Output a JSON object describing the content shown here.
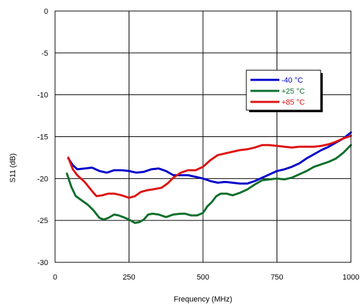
{
  "chart_data": {
    "type": "line",
    "xlabel": "Frequency (MHz)",
    "ylabel": "S11 (dB)",
    "xlim": [
      0,
      1000
    ],
    "ylim": [
      -30,
      0
    ],
    "x_ticks": [
      0,
      250,
      500,
      750,
      1000
    ],
    "y_ticks": [
      0,
      -5,
      -10,
      -15,
      -20,
      -25,
      -30
    ],
    "x_tick_labels": [
      "0",
      "250",
      "500",
      "750",
      "1000"
    ],
    "y_tick_labels": [
      "0",
      "-5",
      "-10",
      "-15",
      "-20",
      "-25",
      "-30"
    ],
    "grid": true,
    "legend_position": "right",
    "series": [
      {
        "name": "-40 °C",
        "color": "#0000cc",
        "points": [
          [
            45,
            -17.6
          ],
          [
            60,
            -18.4
          ],
          [
            75,
            -18.9
          ],
          [
            100,
            -18.8
          ],
          [
            125,
            -18.7
          ],
          [
            150,
            -19.1
          ],
          [
            175,
            -19.3
          ],
          [
            200,
            -19.0
          ],
          [
            225,
            -19.0
          ],
          [
            250,
            -19.1
          ],
          [
            275,
            -19.3
          ],
          [
            300,
            -19.2
          ],
          [
            325,
            -18.9
          ],
          [
            350,
            -18.8
          ],
          [
            375,
            -19.1
          ],
          [
            400,
            -19.6
          ],
          [
            425,
            -19.6
          ],
          [
            450,
            -19.6
          ],
          [
            475,
            -19.8
          ],
          [
            500,
            -20.0
          ],
          [
            525,
            -20.3
          ],
          [
            550,
            -20.5
          ],
          [
            575,
            -20.4
          ],
          [
            600,
            -20.5
          ],
          [
            625,
            -20.6
          ],
          [
            650,
            -20.6
          ],
          [
            675,
            -20.3
          ],
          [
            700,
            -19.9
          ],
          [
            725,
            -19.5
          ],
          [
            750,
            -19.1
          ],
          [
            775,
            -18.9
          ],
          [
            800,
            -18.6
          ],
          [
            825,
            -18.2
          ],
          [
            850,
            -17.6
          ],
          [
            875,
            -17.1
          ],
          [
            900,
            -16.6
          ],
          [
            925,
            -16.2
          ],
          [
            950,
            -15.7
          ],
          [
            975,
            -15.2
          ],
          [
            1000,
            -14.5
          ]
        ]
      },
      {
        "name": "+25 °C",
        "color": "#0b6e2a",
        "points": [
          [
            40,
            -19.4
          ],
          [
            55,
            -21.0
          ],
          [
            70,
            -22.1
          ],
          [
            90,
            -22.6
          ],
          [
            110,
            -23.1
          ],
          [
            130,
            -23.8
          ],
          [
            150,
            -24.7
          ],
          [
            165,
            -24.9
          ],
          [
            180,
            -24.7
          ],
          [
            200,
            -24.3
          ],
          [
            215,
            -24.4
          ],
          [
            230,
            -24.6
          ],
          [
            250,
            -24.9
          ],
          [
            270,
            -25.3
          ],
          [
            285,
            -25.2
          ],
          [
            300,
            -24.9
          ],
          [
            315,
            -24.3
          ],
          [
            330,
            -24.2
          ],
          [
            350,
            -24.3
          ],
          [
            375,
            -24.6
          ],
          [
            400,
            -24.3
          ],
          [
            425,
            -24.2
          ],
          [
            440,
            -24.2
          ],
          [
            460,
            -24.4
          ],
          [
            480,
            -24.4
          ],
          [
            500,
            -24.1
          ],
          [
            515,
            -23.3
          ],
          [
            530,
            -22.8
          ],
          [
            545,
            -22.1
          ],
          [
            560,
            -21.8
          ],
          [
            580,
            -21.8
          ],
          [
            600,
            -22.0
          ],
          [
            625,
            -21.7
          ],
          [
            650,
            -21.3
          ],
          [
            675,
            -20.7
          ],
          [
            700,
            -20.2
          ],
          [
            725,
            -20.1
          ],
          [
            750,
            -20.0
          ],
          [
            775,
            -20.1
          ],
          [
            800,
            -19.9
          ],
          [
            825,
            -19.5
          ],
          [
            850,
            -19.1
          ],
          [
            875,
            -18.6
          ],
          [
            900,
            -18.3
          ],
          [
            925,
            -18.0
          ],
          [
            950,
            -17.6
          ],
          [
            975,
            -16.9
          ],
          [
            1000,
            -16.0
          ]
        ]
      },
      {
        "name": "+85 °C",
        "color": "#dd1111",
        "points": [
          [
            45,
            -17.5
          ],
          [
            60,
            -18.9
          ],
          [
            75,
            -19.6
          ],
          [
            100,
            -20.4
          ],
          [
            125,
            -21.5
          ],
          [
            140,
            -22.1
          ],
          [
            160,
            -22.0
          ],
          [
            180,
            -21.8
          ],
          [
            200,
            -21.8
          ],
          [
            225,
            -22.0
          ],
          [
            250,
            -22.3
          ],
          [
            270,
            -22.1
          ],
          [
            290,
            -21.6
          ],
          [
            310,
            -21.4
          ],
          [
            330,
            -21.3
          ],
          [
            360,
            -21.1
          ],
          [
            380,
            -20.6
          ],
          [
            400,
            -19.9
          ],
          [
            425,
            -19.3
          ],
          [
            450,
            -19.0
          ],
          [
            475,
            -19.0
          ],
          [
            500,
            -18.6
          ],
          [
            525,
            -17.8
          ],
          [
            550,
            -17.2
          ],
          [
            575,
            -17.0
          ],
          [
            600,
            -16.8
          ],
          [
            625,
            -16.6
          ],
          [
            650,
            -16.5
          ],
          [
            675,
            -16.3
          ],
          [
            700,
            -16.0
          ],
          [
            725,
            -16.0
          ],
          [
            750,
            -16.1
          ],
          [
            775,
            -16.2
          ],
          [
            800,
            -16.3
          ],
          [
            825,
            -16.2
          ],
          [
            850,
            -16.2
          ],
          [
            875,
            -16.2
          ],
          [
            900,
            -16.1
          ],
          [
            925,
            -15.9
          ],
          [
            950,
            -15.6
          ],
          [
            975,
            -15.2
          ],
          [
            1000,
            -14.9
          ]
        ]
      }
    ]
  }
}
